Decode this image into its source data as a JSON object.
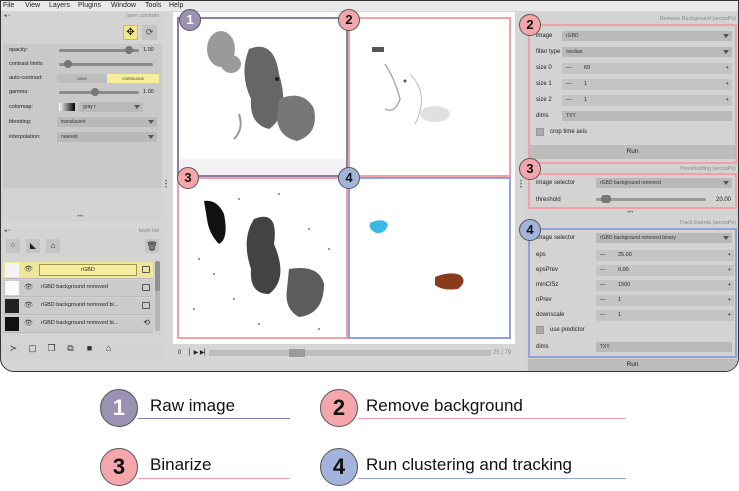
{
  "menu": [
    "File",
    "View",
    "Layers",
    "Plugins",
    "Window",
    "Tools",
    "Help"
  ],
  "layer_controls": {
    "title": "layer controls",
    "opacity_label": "opacity:",
    "opacity_value": "1.00",
    "opacity_level": 0.92,
    "contrast_label": "contrast limits",
    "contrast_level": 0.06,
    "auto_label": "auto-contrast:",
    "auto_once": "once",
    "auto_continuous": "continuous",
    "gamma_label": "gamma:",
    "gamma_value": "1.00",
    "gamma_level": 0.45,
    "colormap_label": "colormap:",
    "colormap_value": "gray r",
    "blending_label": "blending:",
    "blending_value": "translucent",
    "interp_label": "interpolation:",
    "interp_value": "nearest"
  },
  "layer_list": {
    "title": "layer list",
    "layers": [
      "rGBD",
      "rGBD background removed",
      "rGBD background removed bi...",
      "rGBD background removed bi..."
    ]
  },
  "dims_bar": {
    "start": "0",
    "end_text": "25 | 79",
    "position": 0.3
  },
  "remove_background": {
    "title": "Remove Background (arcosPx)",
    "image_label": "image",
    "image_value": "rGBD",
    "filter_label": "filter type",
    "filter_value": "median",
    "size0_label": "size 0",
    "size0_value": "60",
    "size1_label": "size 1",
    "size1_value": "1",
    "size2_label": "size 2",
    "size2_value": "1",
    "dims_label": "dims",
    "dims_value": "TXY",
    "crop_label": "crop time axis",
    "run": "Run"
  },
  "thresholding": {
    "title": "Thresholding (arcosPx)",
    "selector_label": "image selector",
    "selector_value": "rGBD background removed",
    "threshold_label": "threshold",
    "threshold_value": "20.00",
    "threshold_level": 0.05
  },
  "track_events": {
    "title": "Track Events (arcosPx)",
    "selector_label": "image selector",
    "selector_value": "rGBD background removed binary",
    "eps_label": "eps",
    "eps_value": "25.00",
    "epsprev_label": "epsPrev",
    "epsprev_value": "0.00",
    "minclsz_label": "minClSz",
    "minclsz_value": "1500",
    "nprev_label": "nPrev",
    "nprev_value": "1",
    "downscale_label": "downscale",
    "downscale_value": "1",
    "predictor_label": "use predictor",
    "dims_label": "dims",
    "dims_value": "TXY",
    "run": "Run"
  },
  "badges": {
    "b1": "1",
    "b2": "2",
    "b3": "3",
    "b4": "4"
  },
  "legend": [
    {
      "num": "1",
      "text": "Raw image",
      "color": "#8c7fa6",
      "fill": "#9b91b3"
    },
    {
      "num": "2",
      "text": "Remove background",
      "color": "#f0a0a6",
      "fill": "#f4a6aa"
    },
    {
      "num": "3",
      "text": "Binarize",
      "color": "#f0a0a6",
      "fill": "#f4a6aa"
    },
    {
      "num": "4",
      "text": "Run clustering and tracking",
      "color": "#8fa4d4",
      "fill": "#a2b3dc"
    }
  ],
  "colors": {
    "purple": "#8c7fa6",
    "pink": "#f0a0a6",
    "blue": "#8fa4d4",
    "cyan_cell": "#3bb8e6",
    "brown_cell": "#8b3a1e"
  },
  "quadrants": {
    "q1": "raw image",
    "q2": "background removed",
    "q3": "binarized",
    "q4": "clusters"
  }
}
